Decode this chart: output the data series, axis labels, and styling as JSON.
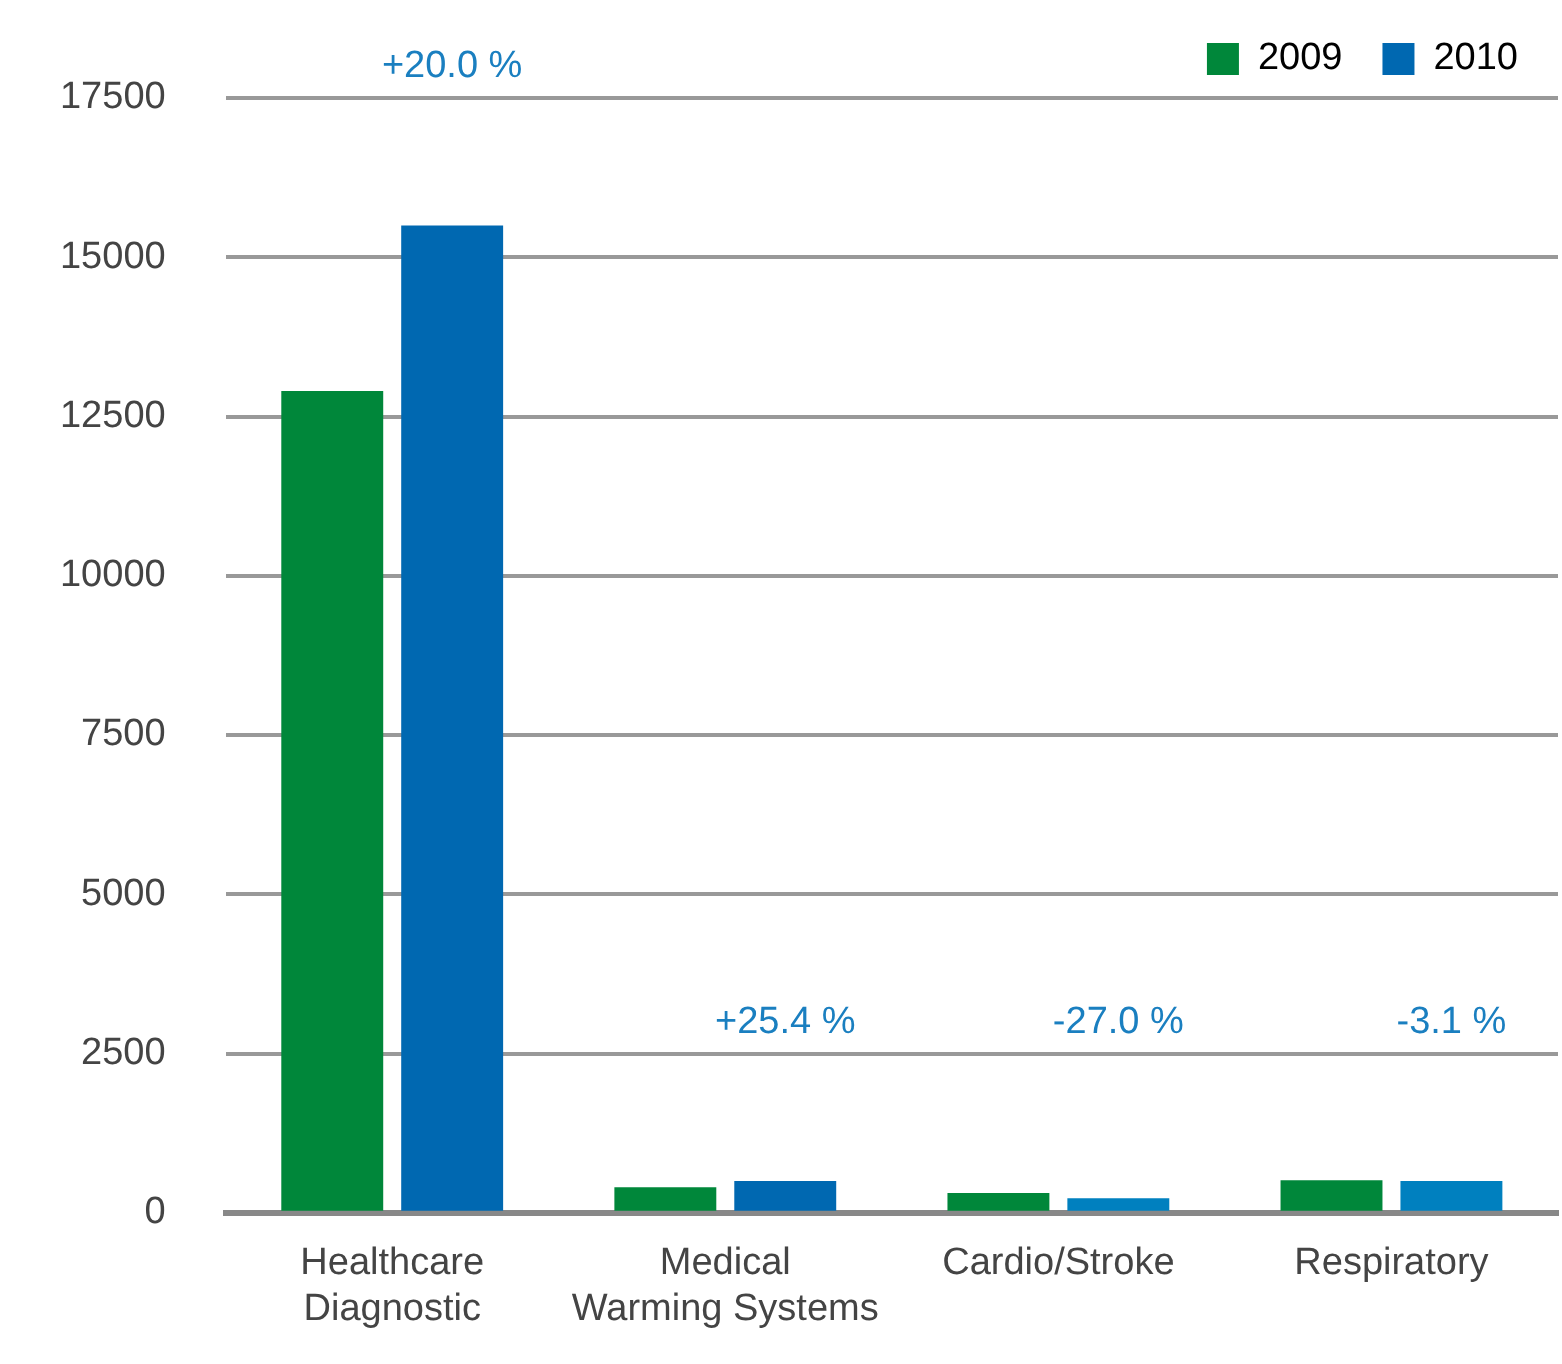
{
  "chart_data": {
    "type": "bar",
    "categories": [
      "Healthcare\nDiagnostic",
      "Medical\nWarming Systems",
      "Cardio/Stroke",
      "Respiratory"
    ],
    "series": [
      {
        "name": "2009",
        "color": "#00873a",
        "values": [
          12900,
          400,
          310,
          510
        ]
      },
      {
        "name": "2010",
        "color": "#0068b1",
        "colors": [
          "#0068b1",
          "#0068b1",
          "#0080bf",
          "#0080bf"
        ],
        "values": [
          15500,
          500,
          230,
          500
        ]
      }
    ],
    "ylim": [
      0,
      17500
    ],
    "yticks": [
      0,
      2500,
      5000,
      7500,
      10000,
      12500,
      15000,
      17500
    ],
    "grid": "y",
    "legend": "top right",
    "annotations": [
      "+20.0 %",
      "+25.4 %",
      "-27.0 %",
      "-3.1 %"
    ]
  }
}
